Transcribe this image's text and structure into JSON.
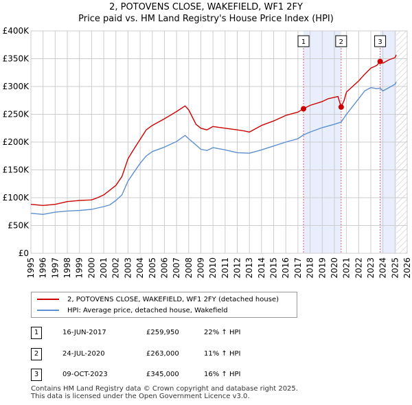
{
  "title_line1": "2, POTOVENS CLOSE, WAKEFIELD, WF1 2FY",
  "title_line2": "Price paid vs. HM Land Registry's House Price Index (HPI)",
  "chart_data": {
    "type": "line",
    "x_range": [
      1995,
      2026
    ],
    "ylim": [
      0,
      400000
    ],
    "y_ticks": [
      0,
      50000,
      100000,
      150000,
      200000,
      250000,
      300000,
      350000,
      400000
    ],
    "y_tick_labels": [
      "£0",
      "£50K",
      "£100K",
      "£150K",
      "£200K",
      "£250K",
      "£300K",
      "£350K",
      "£400K"
    ],
    "x_ticks": [
      1995,
      1996,
      1997,
      1998,
      1999,
      2000,
      2001,
      2002,
      2003,
      2004,
      2005,
      2006,
      2007,
      2008,
      2009,
      2010,
      2011,
      2012,
      2013,
      2014,
      2015,
      2016,
      2017,
      2018,
      2019,
      2020,
      2021,
      2022,
      2023,
      2024,
      2025,
      2026
    ],
    "grid": true,
    "shaded_ranges": [
      [
        2017.46,
        2020.56
      ],
      [
        2023.77,
        2025.1
      ]
    ],
    "hatched_from": 2025.1,
    "series": [
      {
        "name": "2, POTOVENS CLOSE, WAKEFIELD, WF1 2FY (detached house)",
        "color": "#cc0000",
        "points": [
          [
            1995.0,
            88000
          ],
          [
            1996.0,
            86000
          ],
          [
            1997.0,
            88000
          ],
          [
            1998.0,
            93000
          ],
          [
            1999.0,
            95000
          ],
          [
            2000.0,
            96000
          ],
          [
            2000.5,
            100000
          ],
          [
            2001.0,
            105000
          ],
          [
            2002.0,
            122000
          ],
          [
            2002.5,
            138000
          ],
          [
            2003.0,
            170000
          ],
          [
            2003.5,
            188000
          ],
          [
            2004.0,
            205000
          ],
          [
            2004.5,
            222000
          ],
          [
            2005.0,
            230000
          ],
          [
            2006.0,
            242000
          ],
          [
            2007.0,
            255000
          ],
          [
            2007.7,
            265000
          ],
          [
            2008.0,
            258000
          ],
          [
            2008.6,
            232000
          ],
          [
            2009.0,
            225000
          ],
          [
            2009.5,
            222000
          ],
          [
            2010.0,
            228000
          ],
          [
            2011.0,
            225000
          ],
          [
            2012.0,
            222000
          ],
          [
            2012.6,
            220000
          ],
          [
            2013.0,
            218000
          ],
          [
            2014.0,
            230000
          ],
          [
            2015.0,
            238000
          ],
          [
            2016.0,
            248000
          ],
          [
            2017.0,
            254000
          ],
          [
            2017.46,
            259950
          ],
          [
            2018.0,
            266000
          ],
          [
            2019.0,
            273000
          ],
          [
            2019.5,
            278000
          ],
          [
            2020.3,
            282000
          ],
          [
            2020.56,
            263000
          ],
          [
            2020.8,
            275000
          ],
          [
            2021.0,
            290000
          ],
          [
            2022.0,
            310000
          ],
          [
            2022.5,
            322000
          ],
          [
            2023.0,
            333000
          ],
          [
            2023.5,
            338000
          ],
          [
            2023.77,
            345000
          ],
          [
            2024.0,
            342000
          ],
          [
            2024.5,
            348000
          ],
          [
            2025.0,
            352000
          ],
          [
            2025.1,
            357000
          ]
        ]
      },
      {
        "name": "HPI: Average price, detached house, Wakefield",
        "color": "#5b8fd0",
        "points": [
          [
            1995.0,
            72000
          ],
          [
            1996.0,
            70000
          ],
          [
            1997.0,
            74000
          ],
          [
            1998.0,
            76000
          ],
          [
            1999.0,
            77000
          ],
          [
            2000.0,
            79000
          ],
          [
            2001.0,
            84000
          ],
          [
            2001.5,
            87000
          ],
          [
            2002.0,
            95000
          ],
          [
            2002.5,
            105000
          ],
          [
            2003.0,
            130000
          ],
          [
            2003.5,
            146000
          ],
          [
            2004.0,
            162000
          ],
          [
            2004.5,
            175000
          ],
          [
            2005.0,
            183000
          ],
          [
            2006.0,
            191000
          ],
          [
            2007.0,
            201000
          ],
          [
            2007.7,
            212000
          ],
          [
            2008.0,
            206000
          ],
          [
            2008.6,
            195000
          ],
          [
            2009.0,
            187000
          ],
          [
            2009.5,
            185000
          ],
          [
            2010.0,
            190000
          ],
          [
            2011.0,
            186000
          ],
          [
            2012.0,
            181000
          ],
          [
            2013.0,
            180000
          ],
          [
            2014.0,
            186000
          ],
          [
            2015.0,
            193000
          ],
          [
            2016.0,
            200000
          ],
          [
            2017.0,
            206000
          ],
          [
            2017.46,
            213000
          ],
          [
            2018.0,
            218000
          ],
          [
            2019.0,
            226000
          ],
          [
            2020.0,
            232000
          ],
          [
            2020.56,
            236000
          ],
          [
            2021.0,
            250000
          ],
          [
            2022.0,
            278000
          ],
          [
            2022.5,
            292000
          ],
          [
            2023.0,
            298000
          ],
          [
            2023.5,
            296000
          ],
          [
            2023.77,
            297000
          ],
          [
            2024.0,
            292000
          ],
          [
            2024.5,
            298000
          ],
          [
            2025.0,
            304000
          ],
          [
            2025.1,
            308000
          ]
        ]
      }
    ],
    "markers": [
      {
        "label": "1",
        "year": 2017.46,
        "price": 259950
      },
      {
        "label": "2",
        "year": 2020.56,
        "price": 263000
      },
      {
        "label": "3",
        "year": 2023.77,
        "price": 345000
      }
    ]
  },
  "legend": {
    "red_label": "2, POTOVENS CLOSE, WAKEFIELD, WF1 2FY (detached house)",
    "blue_label": "HPI: Average price, detached house, Wakefield"
  },
  "transactions": [
    {
      "num": "1",
      "date": "16-JUN-2017",
      "price": "£259,950",
      "hpi": "22% ↑ HPI"
    },
    {
      "num": "2",
      "date": "24-JUL-2020",
      "price": "£263,000",
      "hpi": "11% ↑ HPI"
    },
    {
      "num": "3",
      "date": "09-OCT-2023",
      "price": "£345,000",
      "hpi": "16% ↑ HPI"
    }
  ],
  "footer": {
    "line1": "Contains HM Land Registry data © Crown copyright and database right 2025.",
    "line2": "This data is licensed under the Open Government Licence v3.0."
  },
  "colors": {
    "red": "#cc0000",
    "blue": "#5b8fd0",
    "shade": "#e8eefb",
    "grid": "#cccccc"
  }
}
